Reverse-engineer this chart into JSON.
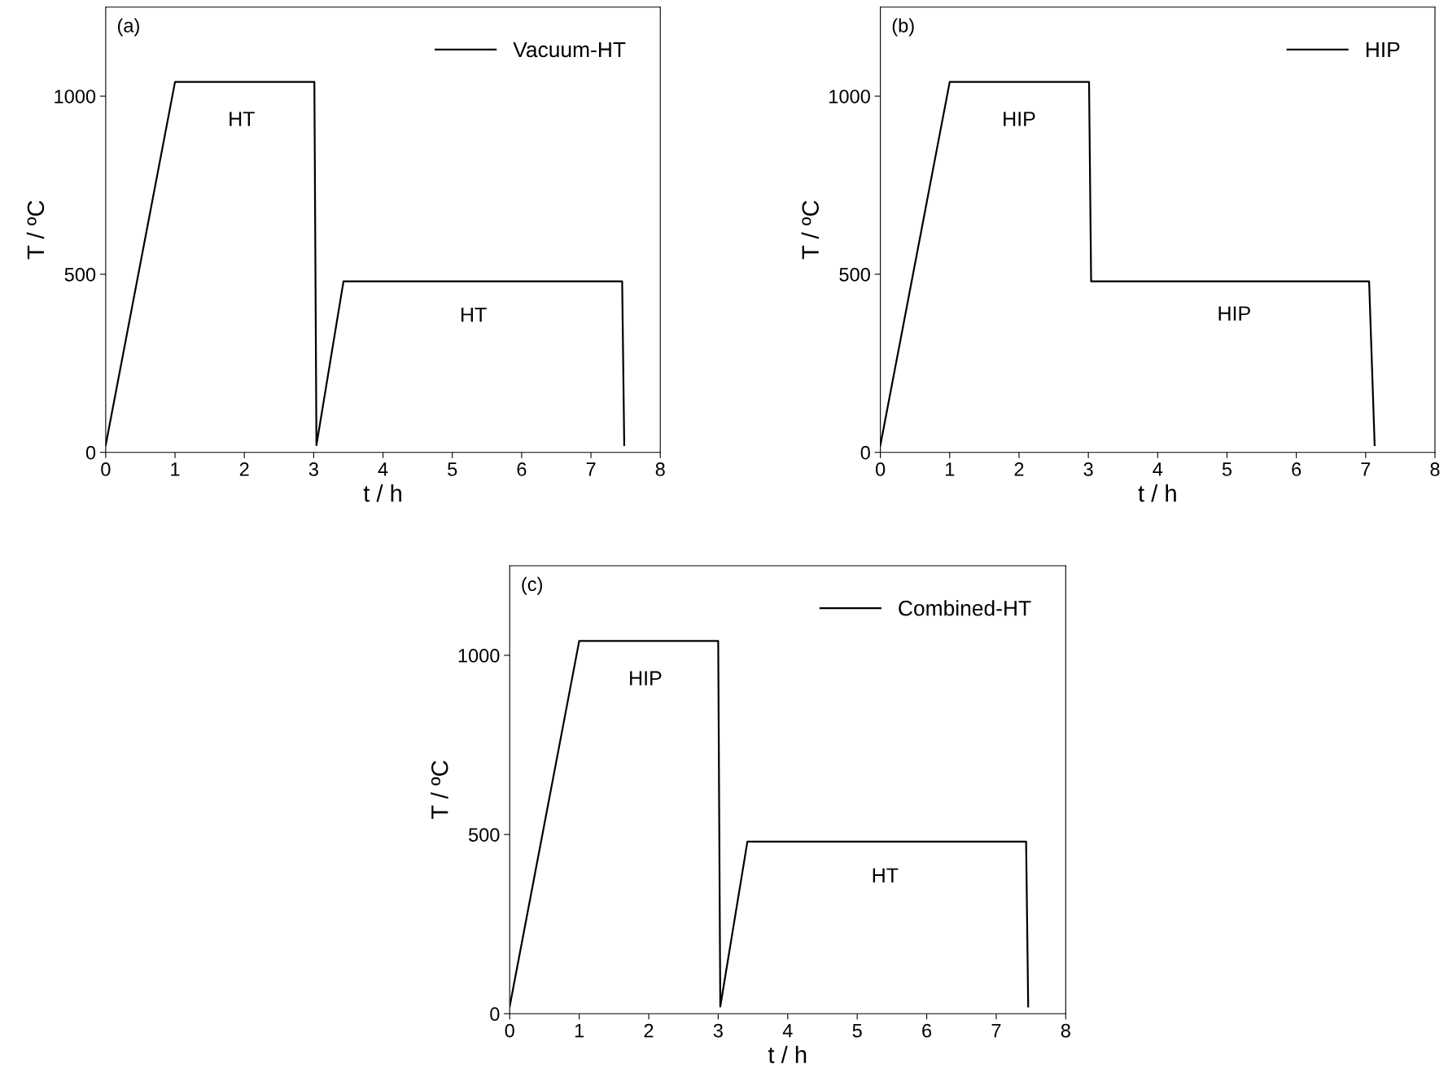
{
  "chart_data": [
    {
      "type": "line",
      "xlabel": "t / h",
      "ylabel": "T / ºC",
      "xlim": [
        0,
        8
      ],
      "ylim": [
        0,
        1250
      ],
      "xticks": [
        0,
        1,
        2,
        3,
        4,
        5,
        6,
        7,
        8
      ],
      "yticks": [
        0,
        500,
        1000
      ],
      "legend": "top right",
      "grid": false,
      "annotations": [
        "(a)",
        "HT",
        "HT"
      ],
      "series": [
        {
          "name": "Vacuum-HT",
          "color": "#000000",
          "x": [
            0,
            1,
            3.01,
            3.04,
            3.43,
            7.45,
            7.48
          ],
          "values": [
            20,
            1040,
            1040,
            20,
            480,
            480,
            20
          ]
        }
      ]
    },
    {
      "type": "line",
      "xlabel": "t / h",
      "ylabel": "T / ºC",
      "xlim": [
        0,
        8
      ],
      "ylim": [
        0,
        1250
      ],
      "xticks": [
        0,
        1,
        2,
        3,
        4,
        5,
        6,
        7,
        8
      ],
      "yticks": [
        0,
        500,
        1000
      ],
      "legend": "top right",
      "grid": false,
      "annotations": [
        "(b)",
        "HIP",
        "HIP"
      ],
      "series": [
        {
          "name": "HIP",
          "color": "#000000",
          "x": [
            0,
            1,
            3.01,
            3.04,
            7.05,
            7.13
          ],
          "values": [
            20,
            1040,
            1040,
            480,
            480,
            20
          ]
        }
      ]
    },
    {
      "type": "line",
      "xlabel": "t / h",
      "ylabel": "T / ºC",
      "xlim": [
        0,
        8
      ],
      "ylim": [
        0,
        1250
      ],
      "xticks": [
        0,
        1,
        2,
        3,
        4,
        5,
        6,
        7,
        8
      ],
      "yticks": [
        0,
        500,
        1000
      ],
      "legend": "top right",
      "grid": false,
      "annotations": [
        "(c)",
        "HIP",
        "HT"
      ],
      "series": [
        {
          "name": "Combined-HT",
          "color": "#000000",
          "x": [
            0,
            1,
            3.0,
            3.03,
            3.42,
            7.43,
            7.46
          ],
          "values": [
            20,
            1040,
            1040,
            20,
            480,
            480,
            20
          ]
        }
      ]
    }
  ]
}
